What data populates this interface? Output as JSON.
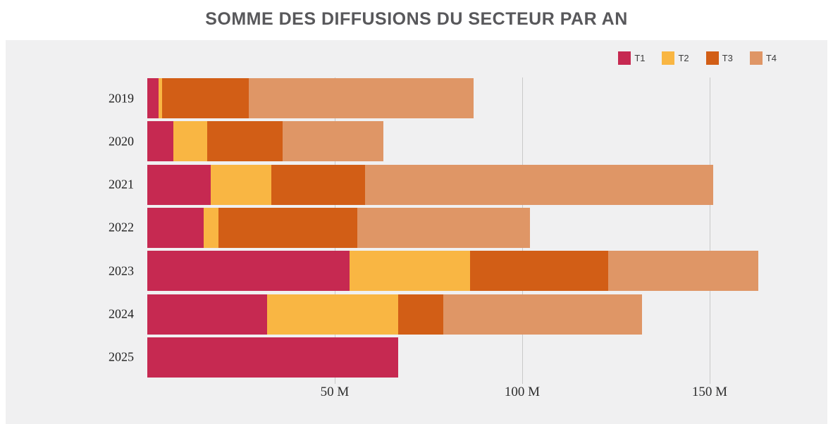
{
  "title": "SOMME DES DIFFUSIONS DU SECTEUR PAR AN",
  "legend": [
    {
      "label": "T1",
      "color": "#c62951"
    },
    {
      "label": "T2",
      "color": "#f9b643"
    },
    {
      "label": "T3",
      "color": "#d25e16"
    },
    {
      "label": "T4",
      "color": "#df9666"
    }
  ],
  "chart_data": {
    "type": "bar",
    "orientation": "horizontal",
    "stacked": true,
    "title": "SOMME DES DIFFUSIONS DU SECTEUR PAR AN",
    "unit": "M",
    "categories": [
      "2019",
      "2020",
      "2021",
      "2022",
      "2023",
      "2024",
      "2025"
    ],
    "series": [
      {
        "name": "T1",
        "color": "#c62951",
        "values": [
          3,
          7,
          17,
          15,
          54,
          32,
          67
        ]
      },
      {
        "name": "T2",
        "color": "#f9b643",
        "values": [
          1,
          9,
          16,
          4,
          32,
          35,
          0
        ]
      },
      {
        "name": "T3",
        "color": "#d25e16",
        "values": [
          23,
          20,
          25,
          37,
          37,
          12,
          0
        ]
      },
      {
        "name": "T4",
        "color": "#df9666",
        "values": [
          60,
          27,
          93,
          46,
          40,
          53,
          0
        ]
      }
    ],
    "totals": [
      87,
      63,
      151,
      102,
      163,
      132,
      67
    ],
    "x_ticks": [
      {
        "value": 50,
        "label": "50 M"
      },
      {
        "value": 100,
        "label": "100 M"
      },
      {
        "value": 150,
        "label": "150 M"
      }
    ],
    "xlim": [
      0,
      181
    ],
    "grid": "vertical",
    "legend_position": "top-right",
    "plot_background": "#f0f0f1"
  }
}
